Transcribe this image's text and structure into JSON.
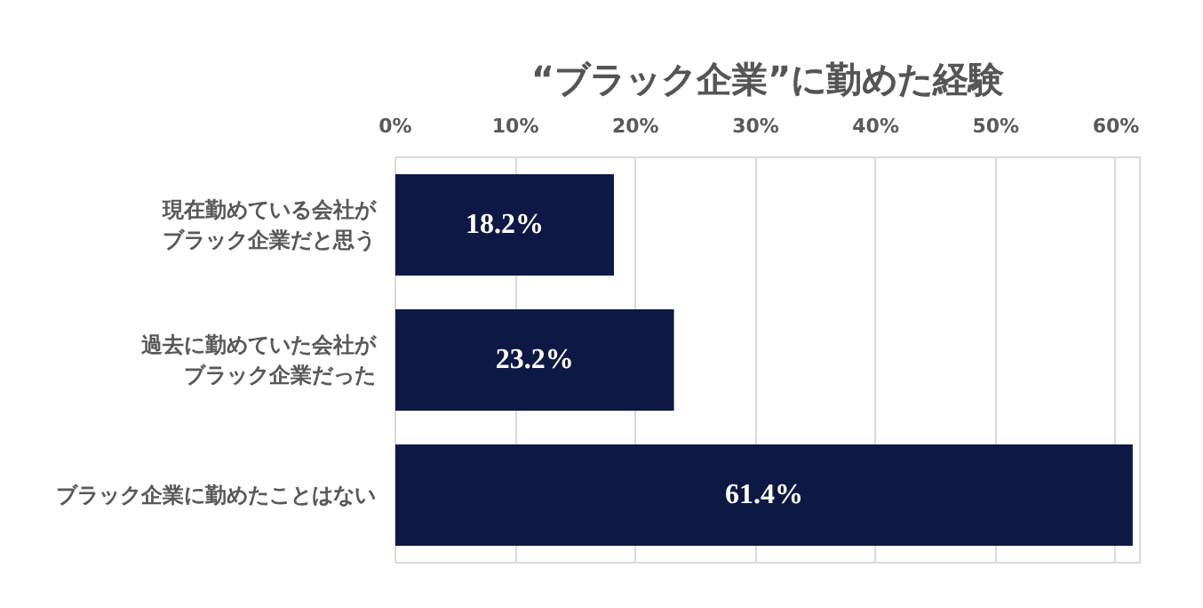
{
  "chart_data": {
    "type": "bar",
    "orientation": "horizontal",
    "title": "“ブラック企業”に勤めた経験",
    "categories": [
      "現在勤めている会社がブラック企業だと思う",
      "過去に勤めていた会社がブラック企業だった",
      "ブラック企業に勤めたことはない"
    ],
    "values": [
      18.2,
      23.2,
      61.4
    ],
    "color": "#0e1844",
    "value_labels": [
      "18.2%",
      "23.2%",
      "61.4%"
    ],
    "xlim": [
      0,
      62
    ],
    "xticks": [
      {
        "value": 0,
        "label": "0%"
      },
      {
        "value": 10,
        "label": "10%"
      },
      {
        "value": 20,
        "label": "20%"
      },
      {
        "value": 30,
        "label": "30%"
      },
      {
        "value": 40,
        "label": "40%"
      },
      {
        "value": 50,
        "label": "50%"
      },
      {
        "value": 60,
        "label": "60%"
      }
    ],
    "grid": "x"
  }
}
